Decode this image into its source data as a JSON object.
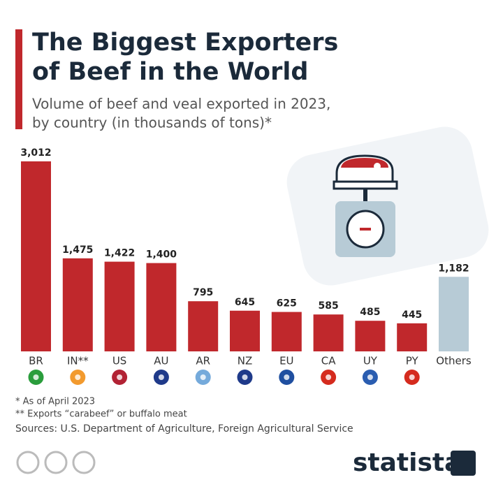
{
  "chart_data": {
    "type": "bar",
    "title": [
      "The Biggest Exporters",
      "of Beef in the World"
    ],
    "subtitle": [
      "Volume of beef and veal exported in 2023,",
      "by country (in thousands of tons)*"
    ],
    "categories": [
      "BR",
      "IN**",
      "US",
      "AU",
      "AR",
      "NZ",
      "EU",
      "CA",
      "UY",
      "PY",
      "Others"
    ],
    "values": [
      3012,
      1475,
      1422,
      1400,
      795,
      645,
      625,
      585,
      485,
      445,
      1182
    ],
    "value_labels": [
      "3,012",
      "1,475",
      "1,422",
      "1,400",
      "795",
      "645",
      "625",
      "585",
      "485",
      "445",
      "1,182"
    ],
    "colors": [
      "#c0282c",
      "#c0282c",
      "#c0282c",
      "#c0282c",
      "#c0282c",
      "#c0282c",
      "#c0282c",
      "#c0282c",
      "#c0282c",
      "#c0282c",
      "#b7cbd6"
    ],
    "notes": [
      "*   As of April 2023",
      "** Exports “carabeef” or buffalo meat"
    ],
    "source": "Sources: U.S. Department of Agriculture, Foreign Agricultural Service",
    "brand": "statista"
  }
}
